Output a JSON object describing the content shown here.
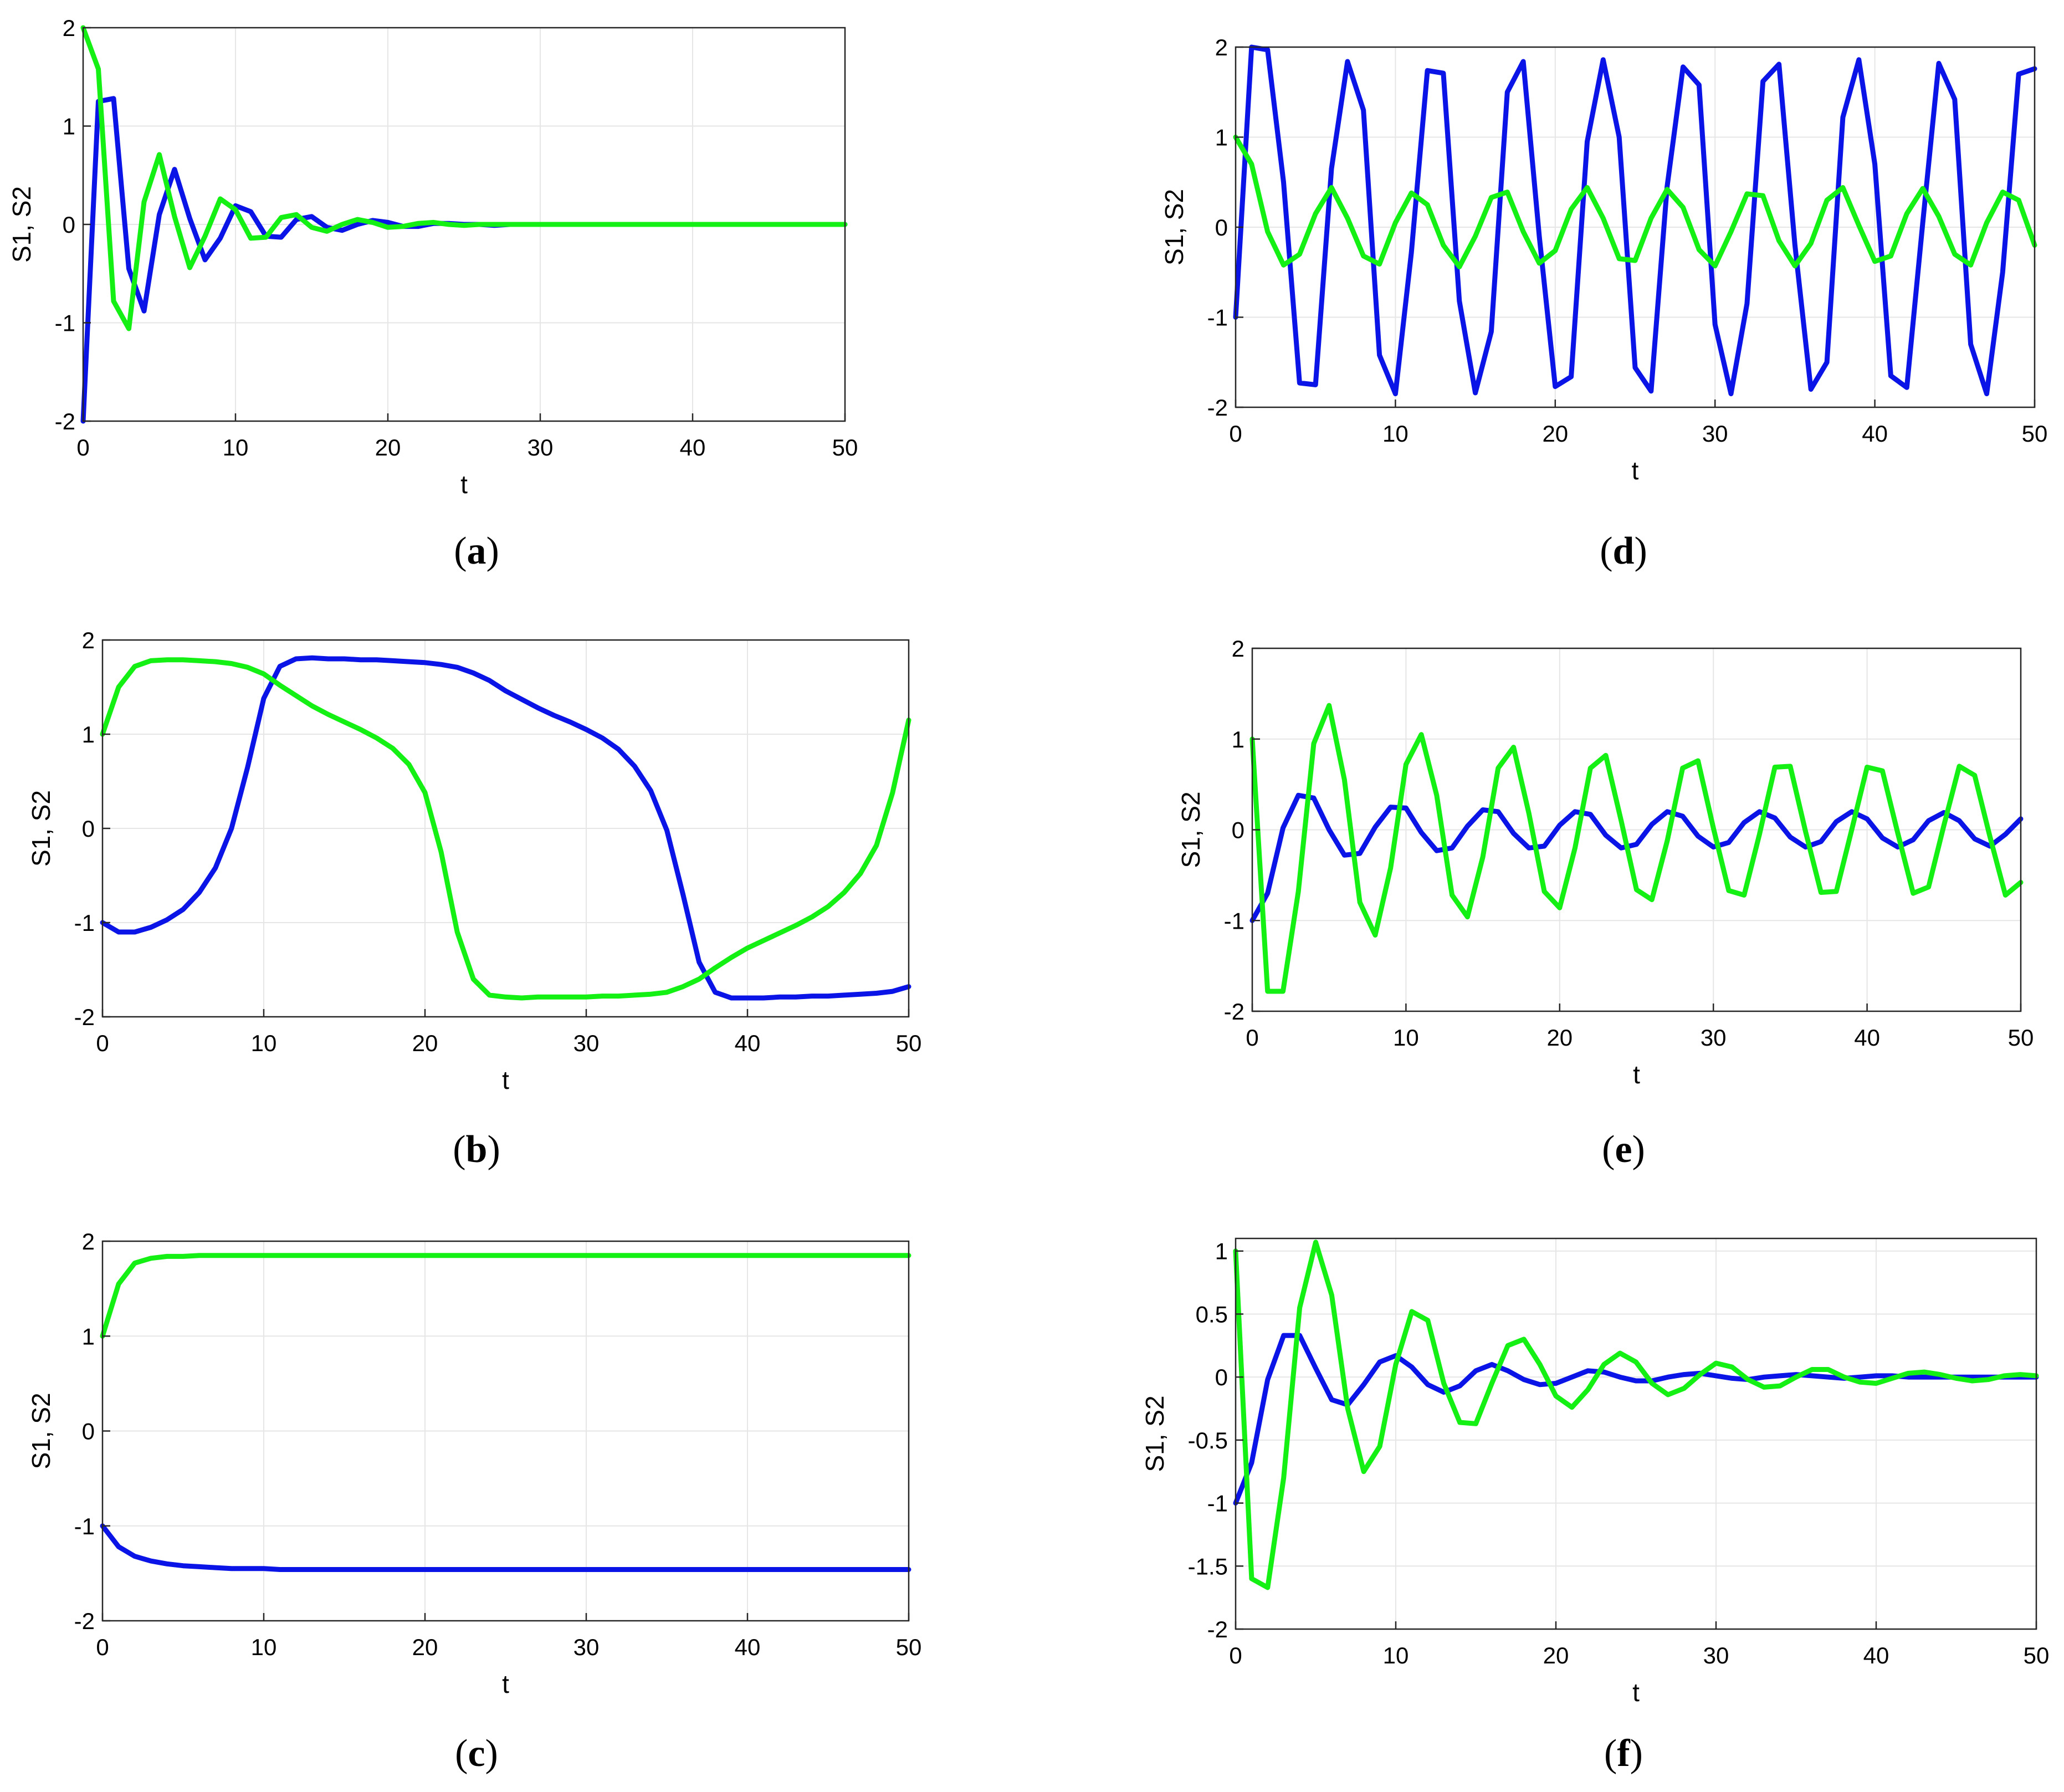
{
  "colors": {
    "s1": "#0a14e6",
    "s2": "#14f014",
    "grid": "#e6e6e6",
    "axis": "#262626"
  },
  "panels": [
    {
      "id": "a",
      "caption_open": "(",
      "caption_letter": "a",
      "caption_close": ")",
      "chart_data": {
        "type": "line",
        "xlabel": "t",
        "ylabel": "S1, S2",
        "xlim": [
          0,
          50
        ],
        "ylim": [
          -2,
          2
        ],
        "xticks": [
          0,
          10,
          20,
          30,
          40,
          50
        ],
        "yticks": [
          -2,
          -1,
          0,
          1,
          2
        ],
        "ytick_labels": [
          "-2",
          "-1",
          "0",
          "1",
          "2"
        ],
        "grid": true,
        "series": [
          {
            "id": "s1",
            "values": [
              -2.0,
              1.25,
              1.28,
              -0.45,
              -0.88,
              0.1,
              0.56,
              0.06,
              -0.36,
              -0.14,
              0.19,
              0.13,
              -0.12,
              -0.13,
              0.05,
              0.08,
              -0.03,
              -0.06,
              0.0,
              0.04,
              0.02,
              -0.02,
              -0.02,
              0.01,
              0.01,
              0.0,
              0.0,
              -0.01,
              0.0,
              0.0,
              0.0,
              0.0,
              0.0,
              0.0,
              0.0,
              0.0,
              0.0,
              0.0,
              0.0,
              0.0,
              0.0,
              0.0,
              0.0,
              0.0,
              0.0,
              0.0,
              0.0,
              0.0,
              0.0,
              0.0,
              0.0
            ]
          },
          {
            "id": "s2",
            "values": [
              2.0,
              1.58,
              -0.78,
              -1.06,
              0.23,
              0.71,
              0.08,
              -0.44,
              -0.12,
              0.26,
              0.15,
              -0.14,
              -0.13,
              0.07,
              0.1,
              -0.03,
              -0.07,
              0.0,
              0.05,
              0.02,
              -0.03,
              -0.02,
              0.01,
              0.02,
              0.0,
              -0.01,
              0.0,
              0.0,
              0.0,
              0.0,
              0.0,
              0.0,
              0.0,
              0.0,
              0.0,
              0.0,
              0.0,
              0.0,
              0.0,
              0.0,
              0.0,
              0.0,
              0.0,
              0.0,
              0.0,
              0.0,
              0.0,
              0.0,
              0.0,
              0.0,
              0.0
            ]
          }
        ]
      }
    },
    {
      "id": "d",
      "caption_open": "(",
      "caption_letter": "d",
      "caption_close": ")",
      "chart_data": {
        "type": "line",
        "xlabel": "t",
        "ylabel": "S1, S2",
        "xlim": [
          0,
          50
        ],
        "ylim": [
          -2,
          2
        ],
        "xticks": [
          0,
          10,
          20,
          30,
          40,
          50
        ],
        "yticks": [
          -2,
          -1,
          0,
          1,
          2
        ],
        "ytick_labels": [
          "-2",
          "-1",
          "0",
          "1",
          "2"
        ],
        "grid": true,
        "series": [
          {
            "id": "s1",
            "values": [
              -1.0,
              2.0,
              1.97,
              0.5,
              -1.73,
              -1.75,
              0.65,
              1.84,
              1.3,
              -1.42,
              -1.85,
              -0.28,
              1.74,
              1.71,
              -0.82,
              -1.84,
              -1.16,
              1.5,
              1.84,
              -0.1,
              -1.77,
              -1.66,
              0.95,
              1.86,
              1.0,
              -1.56,
              -1.82,
              0.45,
              1.78,
              1.58,
              -1.08,
              -1.85,
              -0.85,
              1.62,
              1.81,
              -0.2,
              -1.8,
              -1.5,
              1.22,
              1.86,
              0.7,
              -1.65,
              -1.78,
              0.05,
              1.82,
              1.42,
              -1.3,
              -1.85,
              -0.5,
              1.7,
              1.76
            ]
          },
          {
            "id": "s2",
            "values": [
              1.0,
              0.7,
              -0.05,
              -0.42,
              -0.3,
              0.15,
              0.44,
              0.1,
              -0.32,
              -0.41,
              0.05,
              0.38,
              0.25,
              -0.2,
              -0.44,
              -0.1,
              0.33,
              0.39,
              -0.05,
              -0.4,
              -0.26,
              0.2,
              0.44,
              0.1,
              -0.35,
              -0.37,
              0.1,
              0.42,
              0.22,
              -0.25,
              -0.43,
              -0.05,
              0.37,
              0.35,
              -0.15,
              -0.43,
              -0.18,
              0.3,
              0.44,
              0.02,
              -0.38,
              -0.32,
              0.15,
              0.43,
              0.12,
              -0.3,
              -0.42,
              0.05,
              0.39,
              0.3,
              -0.2
            ]
          }
        ]
      }
    },
    {
      "id": "b",
      "caption_open": "(",
      "caption_letter": "b",
      "caption_close": ")",
      "chart_data": {
        "type": "line",
        "xlabel": "t",
        "ylabel": "S1, S2",
        "xlim": [
          0,
          50
        ],
        "ylim": [
          -2,
          2
        ],
        "xticks": [
          0,
          10,
          20,
          30,
          40,
          50
        ],
        "yticks": [
          -2,
          -1,
          0,
          1,
          2
        ],
        "ytick_labels": [
          "-2",
          "-1",
          "0",
          "1",
          "2"
        ],
        "grid": true,
        "series": [
          {
            "id": "s1",
            "values": [
              -1.0,
              -1.1,
              -1.1,
              -1.05,
              -0.97,
              -0.86,
              -0.68,
              -0.42,
              0.0,
              0.65,
              1.38,
              1.72,
              1.8,
              1.81,
              1.8,
              1.8,
              1.79,
              1.79,
              1.78,
              1.77,
              1.76,
              1.74,
              1.71,
              1.65,
              1.57,
              1.46,
              1.37,
              1.28,
              1.2,
              1.13,
              1.05,
              0.96,
              0.84,
              0.66,
              0.4,
              -0.02,
              -0.7,
              -1.42,
              -1.74,
              -1.8,
              -1.8,
              -1.8,
              -1.79,
              -1.79,
              -1.78,
              -1.78,
              -1.77,
              -1.76,
              -1.75,
              -1.73,
              -1.68
            ]
          },
          {
            "id": "s2",
            "values": [
              1.0,
              1.5,
              1.72,
              1.78,
              1.79,
              1.79,
              1.78,
              1.77,
              1.75,
              1.71,
              1.64,
              1.52,
              1.41,
              1.3,
              1.21,
              1.13,
              1.05,
              0.96,
              0.85,
              0.68,
              0.38,
              -0.25,
              -1.1,
              -1.6,
              -1.77,
              -1.79,
              -1.8,
              -1.79,
              -1.79,
              -1.79,
              -1.79,
              -1.78,
              -1.78,
              -1.77,
              -1.76,
              -1.74,
              -1.68,
              -1.6,
              -1.48,
              -1.37,
              -1.27,
              -1.19,
              -1.11,
              -1.03,
              -0.94,
              -0.83,
              -0.68,
              -0.48,
              -0.18,
              0.38,
              1.15
            ]
          }
        ]
      }
    },
    {
      "id": "e",
      "caption_open": "(",
      "caption_letter": "e",
      "caption_close": ")",
      "chart_data": {
        "type": "line",
        "xlabel": "t",
        "ylabel": "S1, S2",
        "xlim": [
          0,
          50
        ],
        "ylim": [
          -2,
          2
        ],
        "xticks": [
          0,
          10,
          20,
          30,
          40,
          50
        ],
        "yticks": [
          -2,
          -1,
          0,
          1,
          2
        ],
        "ytick_labels": [
          "-2",
          "-1",
          "0",
          "1",
          "2"
        ],
        "grid": true,
        "series": [
          {
            "id": "s1",
            "values": [
              -1.0,
              -0.7,
              0.02,
              0.38,
              0.35,
              0.0,
              -0.28,
              -0.26,
              0.03,
              0.25,
              0.24,
              -0.03,
              -0.23,
              -0.2,
              0.04,
              0.22,
              0.2,
              -0.04,
              -0.2,
              -0.18,
              0.05,
              0.2,
              0.17,
              -0.06,
              -0.2,
              -0.16,
              0.06,
              0.2,
              0.15,
              -0.07,
              -0.19,
              -0.14,
              0.08,
              0.2,
              0.13,
              -0.08,
              -0.19,
              -0.13,
              0.09,
              0.2,
              0.12,
              -0.09,
              -0.19,
              -0.11,
              0.1,
              0.19,
              0.1,
              -0.1,
              -0.18,
              -0.05,
              0.12
            ]
          },
          {
            "id": "s2",
            "values": [
              1.0,
              -1.78,
              -1.78,
              -0.68,
              0.95,
              1.37,
              0.55,
              -0.8,
              -1.16,
              -0.42,
              0.72,
              1.05,
              0.38,
              -0.72,
              -0.96,
              -0.3,
              0.68,
              0.91,
              0.18,
              -0.68,
              -0.86,
              -0.2,
              0.68,
              0.82,
              0.1,
              -0.66,
              -0.77,
              -0.12,
              0.68,
              0.76,
              0.02,
              -0.67,
              -0.72,
              -0.05,
              0.69,
              0.7,
              -0.02,
              -0.69,
              -0.68,
              0.0,
              0.69,
              0.65,
              -0.04,
              -0.7,
              -0.63,
              0.05,
              0.7,
              0.6,
              -0.08,
              -0.72,
              -0.58
            ]
          }
        ]
      }
    },
    {
      "id": "c",
      "caption_open": "(",
      "caption_letter": "c",
      "caption_close": ")",
      "chart_data": {
        "type": "line",
        "xlabel": "t",
        "ylabel": "S1, S2",
        "xlim": [
          0,
          50
        ],
        "ylim": [
          -2,
          2
        ],
        "xticks": [
          0,
          10,
          20,
          30,
          40,
          50
        ],
        "yticks": [
          -2,
          -1,
          0,
          1,
          2
        ],
        "ytick_labels": [
          "-2",
          "-1",
          "0",
          "1",
          "2"
        ],
        "grid": true,
        "series": [
          {
            "id": "s1",
            "values": [
              -1.0,
              -1.22,
              -1.32,
              -1.37,
              -1.4,
              -1.42,
              -1.43,
              -1.44,
              -1.45,
              -1.45,
              -1.45,
              -1.46,
              -1.46,
              -1.46,
              -1.46,
              -1.46,
              -1.46,
              -1.46,
              -1.46,
              -1.46,
              -1.46,
              -1.46,
              -1.46,
              -1.46,
              -1.46,
              -1.46,
              -1.46,
              -1.46,
              -1.46,
              -1.46,
              -1.46,
              -1.46,
              -1.46,
              -1.46,
              -1.46,
              -1.46,
              -1.46,
              -1.46,
              -1.46,
              -1.46,
              -1.46,
              -1.46,
              -1.46,
              -1.46,
              -1.46,
              -1.46,
              -1.46,
              -1.46,
              -1.46,
              -1.46,
              -1.46
            ]
          },
          {
            "id": "s2",
            "values": [
              1.0,
              1.55,
              1.77,
              1.82,
              1.84,
              1.84,
              1.85,
              1.85,
              1.85,
              1.85,
              1.85,
              1.85,
              1.85,
              1.85,
              1.85,
              1.85,
              1.85,
              1.85,
              1.85,
              1.85,
              1.85,
              1.85,
              1.85,
              1.85,
              1.85,
              1.85,
              1.85,
              1.85,
              1.85,
              1.85,
              1.85,
              1.85,
              1.85,
              1.85,
              1.85,
              1.85,
              1.85,
              1.85,
              1.85,
              1.85,
              1.85,
              1.85,
              1.85,
              1.85,
              1.85,
              1.85,
              1.85,
              1.85,
              1.85,
              1.85,
              1.85
            ]
          }
        ]
      }
    },
    {
      "id": "f",
      "caption_open": "(",
      "caption_letter": "f",
      "caption_close": ")",
      "chart_data": {
        "type": "line",
        "xlabel": "t",
        "ylabel": "S1, S2",
        "xlim": [
          0,
          50
        ],
        "ylim": [
          -2,
          1.1
        ],
        "xticks": [
          0,
          10,
          20,
          30,
          40,
          50
        ],
        "yticks": [
          -2,
          -1.5,
          -1,
          -0.5,
          0,
          0.5,
          1
        ],
        "ytick_labels": [
          "-2",
          "-1.5",
          "-1",
          "-0.5",
          "0",
          "0.5",
          "1"
        ],
        "grid": true,
        "series": [
          {
            "id": "s1",
            "values": [
              -1.0,
              -0.68,
              -0.02,
              0.33,
              0.33,
              0.07,
              -0.18,
              -0.22,
              -0.06,
              0.12,
              0.17,
              0.08,
              -0.06,
              -0.12,
              -0.07,
              0.05,
              0.1,
              0.05,
              -0.02,
              -0.06,
              -0.05,
              0.0,
              0.05,
              0.04,
              0.0,
              -0.03,
              -0.03,
              0.0,
              0.02,
              0.03,
              0.01,
              -0.01,
              -0.02,
              0.0,
              0.01,
              0.02,
              0.01,
              0.0,
              -0.01,
              0.0,
              0.01,
              0.01,
              0.0,
              0.0,
              0.0,
              0.0,
              0.0,
              0.0,
              0.0,
              0.0,
              0.0
            ]
          },
          {
            "id": "s2",
            "values": [
              1.0,
              -1.6,
              -1.67,
              -0.8,
              0.55,
              1.07,
              0.65,
              -0.25,
              -0.75,
              -0.55,
              0.1,
              0.52,
              0.45,
              -0.05,
              -0.36,
              -0.37,
              -0.05,
              0.25,
              0.3,
              0.1,
              -0.15,
              -0.24,
              -0.1,
              0.1,
              0.19,
              0.12,
              -0.05,
              -0.14,
              -0.09,
              0.02,
              0.11,
              0.08,
              -0.02,
              -0.08,
              -0.07,
              0.0,
              0.06,
              0.06,
              0.0,
              -0.04,
              -0.05,
              -0.01,
              0.03,
              0.04,
              0.02,
              -0.01,
              -0.03,
              -0.02,
              0.01,
              0.02,
              0.01
            ]
          }
        ]
      }
    }
  ]
}
